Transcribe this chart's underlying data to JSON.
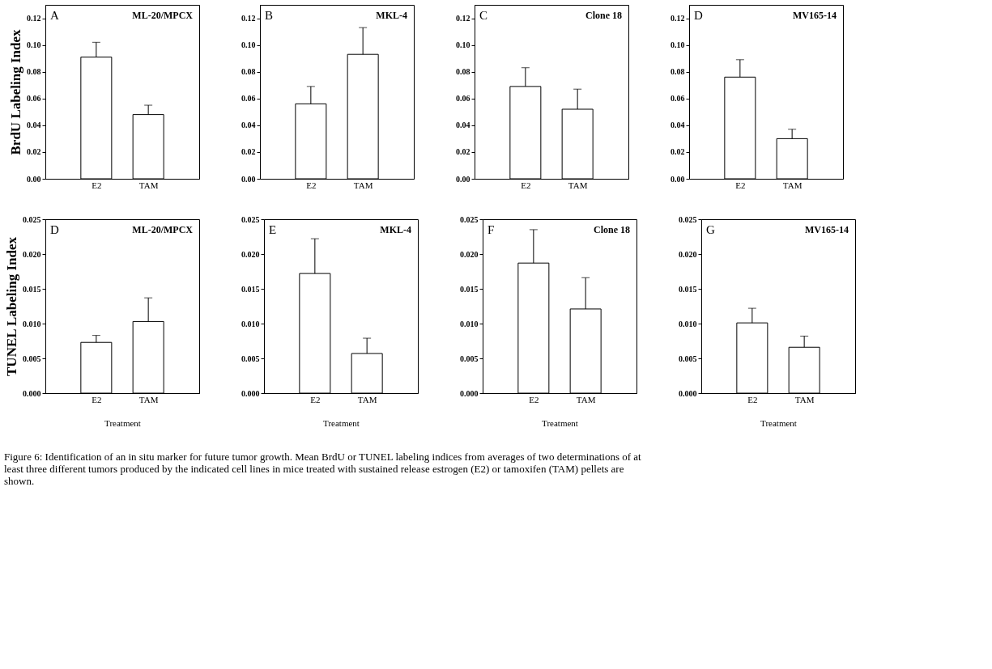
{
  "chart_data": [
    {
      "type": "bar",
      "title": "ML-20/MPCX",
      "ylabel": "BrdU Labeling Index",
      "annotations": [
        "A"
      ],
      "categories": [
        "E2",
        "TAM"
      ],
      "values": [
        0.091,
        0.048
      ],
      "errors": [
        [
          0.091,
          0.102
        ],
        [
          0.048,
          0.055
        ]
      ],
      "color": "#ffffff",
      "ylim": [
        0,
        0.13
      ],
      "yticks": [
        {
          "value": 0,
          "label": "0.00"
        },
        {
          "value": 0.02,
          "label": "0.02"
        },
        {
          "value": 0.04,
          "label": "0.04"
        },
        {
          "value": 0.06,
          "label": "0.06"
        },
        {
          "value": 0.08,
          "label": "0.08"
        },
        {
          "value": 0.1,
          "label": "0.10"
        },
        {
          "value": 0.12,
          "label": "0.12"
        }
      ],
      "grid": false
    },
    {
      "type": "bar",
      "title": "MKL-4",
      "annotations": [
        "B"
      ],
      "categories": [
        "E2",
        "TAM"
      ],
      "values": [
        0.056,
        0.093
      ],
      "errors": [
        [
          0.056,
          0.069
        ],
        [
          0.093,
          0.113
        ]
      ],
      "color": "#ffffff",
      "ylim": [
        0,
        0.13
      ],
      "yticks": [
        {
          "value": 0,
          "label": "0.00"
        },
        {
          "value": 0.02,
          "label": "0.02"
        },
        {
          "value": 0.04,
          "label": "0.04"
        },
        {
          "value": 0.06,
          "label": "0.06"
        },
        {
          "value": 0.08,
          "label": "0.08"
        },
        {
          "value": 0.1,
          "label": "0.10"
        },
        {
          "value": 0.12,
          "label": "0.12"
        }
      ],
      "grid": false
    },
    {
      "type": "bar",
      "title": "Clone 18",
      "annotations": [
        "C"
      ],
      "categories": [
        "E2",
        "TAM"
      ],
      "values": [
        0.069,
        0.052
      ],
      "errors": [
        [
          0.069,
          0.083
        ],
        [
          0.052,
          0.067
        ]
      ],
      "color": "#ffffff",
      "ylim": [
        0,
        0.13
      ],
      "yticks": [
        {
          "value": 0,
          "label": "0.00"
        },
        {
          "value": 0.02,
          "label": "0.02"
        },
        {
          "value": 0.04,
          "label": "0.04"
        },
        {
          "value": 0.06,
          "label": "0.06"
        },
        {
          "value": 0.08,
          "label": "0.08"
        },
        {
          "value": 0.1,
          "label": "0.10"
        },
        {
          "value": 0.12,
          "label": "0.12"
        }
      ],
      "grid": false
    },
    {
      "type": "bar",
      "title": "MV165-14",
      "annotations": [
        "D"
      ],
      "categories": [
        "E2",
        "TAM"
      ],
      "values": [
        0.076,
        0.03
      ],
      "errors": [
        [
          0.076,
          0.089
        ],
        [
          0.03,
          0.037
        ]
      ],
      "color": "#ffffff",
      "ylim": [
        0,
        0.13
      ],
      "yticks": [
        {
          "value": 0,
          "label": "0.00"
        },
        {
          "value": 0.02,
          "label": "0.02"
        },
        {
          "value": 0.04,
          "label": "0.04"
        },
        {
          "value": 0.06,
          "label": "0.06"
        },
        {
          "value": 0.08,
          "label": "0.08"
        },
        {
          "value": 0.1,
          "label": "0.10"
        },
        {
          "value": 0.12,
          "label": "0.12"
        }
      ],
      "grid": false
    },
    {
      "type": "bar",
      "title": "ML-20/MPCX",
      "ylabel": "TUNEL Labeling Index",
      "xlabel": "Treatment",
      "annotations": [
        "D"
      ],
      "categories": [
        "E2",
        "TAM"
      ],
      "values": [
        0.0073,
        0.0103
      ],
      "errors": [
        [
          0.0073,
          0.0083
        ],
        [
          0.0103,
          0.0137
        ]
      ],
      "color": "#ffffff",
      "ylim": [
        0,
        0.025
      ],
      "yticks": [
        {
          "value": 0,
          "label": "0.000"
        },
        {
          "value": 0.005,
          "label": "0.005"
        },
        {
          "value": 0.01,
          "label": "0.010"
        },
        {
          "value": 0.015,
          "label": "0.015"
        },
        {
          "value": 0.02,
          "label": "0.020"
        },
        {
          "value": 0.025,
          "label": "0.025"
        }
      ],
      "grid": false
    },
    {
      "type": "bar",
      "title": "MKL-4",
      "xlabel": "Treatment",
      "annotations": [
        "E"
      ],
      "categories": [
        "E2",
        "TAM"
      ],
      "values": [
        0.0172,
        0.0057
      ],
      "errors": [
        [
          0.0172,
          0.0222
        ],
        [
          0.0057,
          0.0079
        ]
      ],
      "color": "#ffffff",
      "ylim": [
        0,
        0.025
      ],
      "yticks": [
        {
          "value": 0,
          "label": "0.000"
        },
        {
          "value": 0.005,
          "label": "0.005"
        },
        {
          "value": 0.01,
          "label": "0.010"
        },
        {
          "value": 0.015,
          "label": "0.015"
        },
        {
          "value": 0.02,
          "label": "0.020"
        },
        {
          "value": 0.025,
          "label": "0.025"
        }
      ],
      "grid": false
    },
    {
      "type": "bar",
      "title": "Clone 18",
      "xlabel": "Treatment",
      "annotations": [
        "F"
      ],
      "categories": [
        "E2",
        "TAM"
      ],
      "values": [
        0.0187,
        0.0121
      ],
      "errors": [
        [
          0.0187,
          0.0235
        ],
        [
          0.0121,
          0.0166
        ]
      ],
      "color": "#ffffff",
      "ylim": [
        0,
        0.025
      ],
      "yticks": [
        {
          "value": 0,
          "label": "0.000"
        },
        {
          "value": 0.005,
          "label": "0.005"
        },
        {
          "value": 0.01,
          "label": "0.010"
        },
        {
          "value": 0.015,
          "label": "0.015"
        },
        {
          "value": 0.02,
          "label": "0.020"
        },
        {
          "value": 0.025,
          "label": "0.025"
        }
      ],
      "grid": false
    },
    {
      "type": "bar",
      "title": "MV165-14",
      "xlabel": "Treatment",
      "annotations": [
        "G",
        "Figure 6: Identification of an in situ marker for future tumor growth. Mean BrdU or TUNEL labeling indices from averages of two determinations of at least three different tumors produced by the indicated cell lines in mice treated with sustained release estrogen (E2) or tamoxifen (TAM) pellets are shown."
      ],
      "categories": [
        "E2",
        "TAM"
      ],
      "values": [
        0.0101,
        0.0066
      ],
      "errors": [
        [
          0.0101,
          0.0122
        ],
        [
          0.0066,
          0.0082
        ]
      ],
      "color": "#ffffff",
      "ylim": [
        0,
        0.025
      ],
      "yticks": [
        {
          "value": 0,
          "label": "0.000"
        },
        {
          "value": 0.005,
          "label": "0.005"
        },
        {
          "value": 0.01,
          "label": "0.010"
        },
        {
          "value": 0.015,
          "label": "0.015"
        },
        {
          "value": 0.02,
          "label": "0.020"
        },
        {
          "value": 0.025,
          "label": "0.025"
        }
      ],
      "grid": false
    }
  ]
}
